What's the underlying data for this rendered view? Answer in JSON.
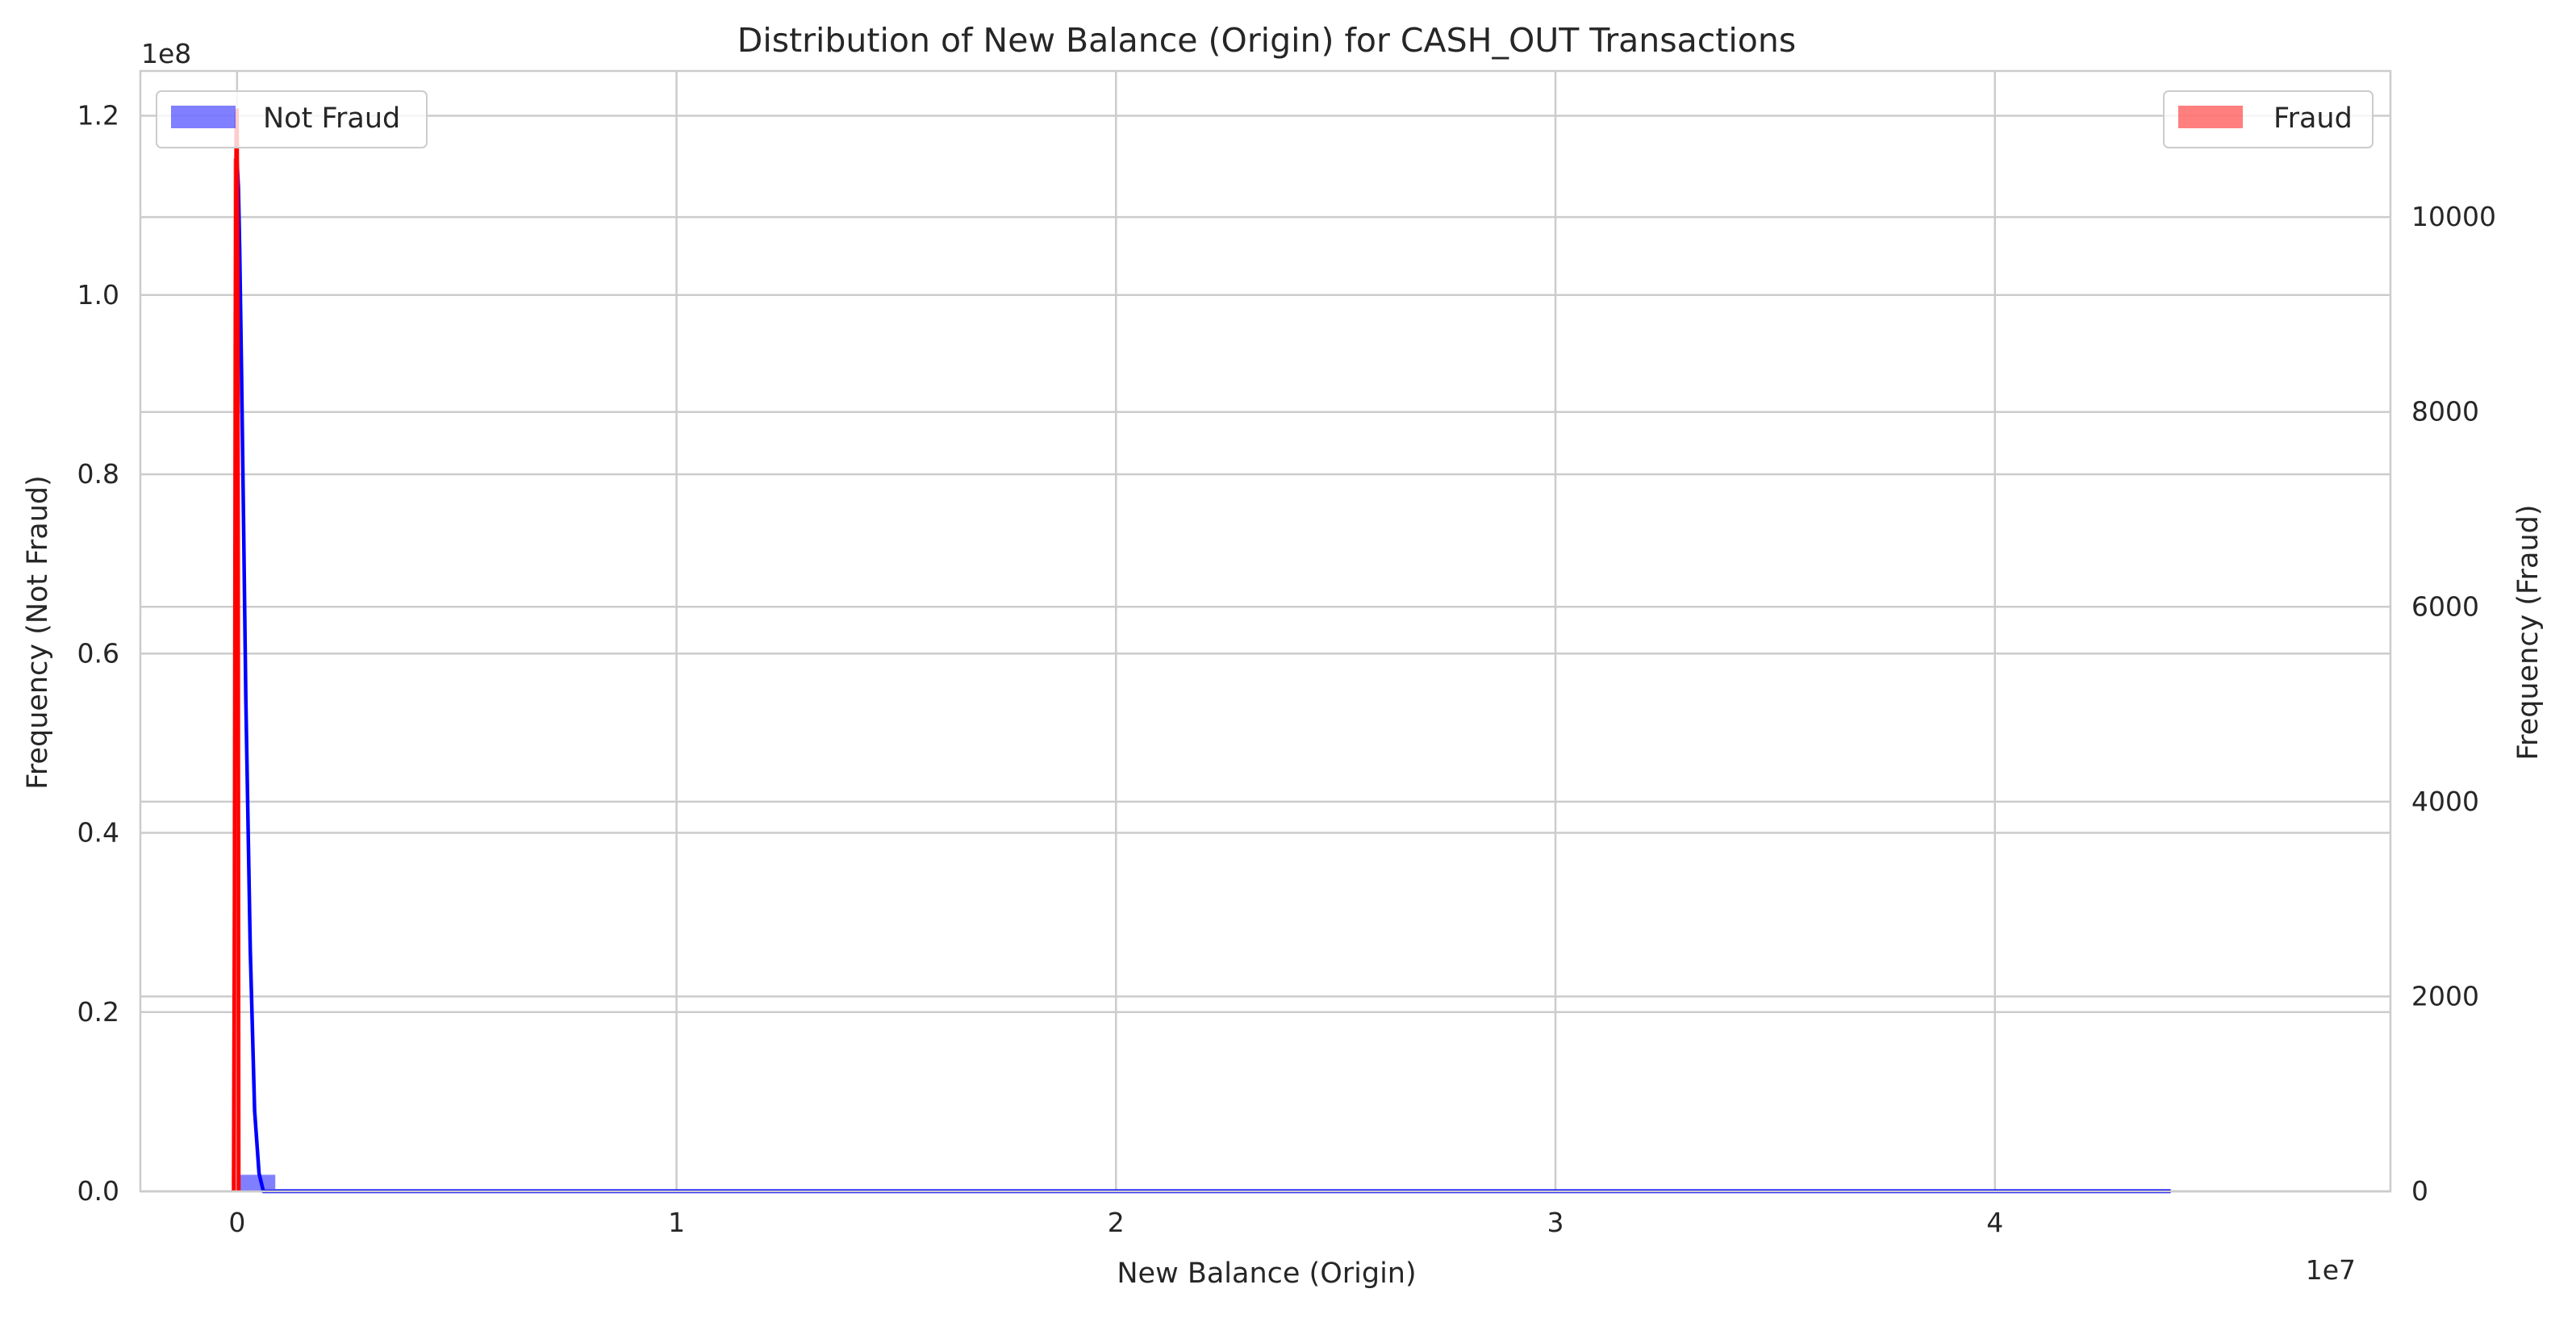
{
  "chart_data": {
    "type": "bar",
    "title": "Distribution of New Balance (Origin) for CASH_OUT Transactions",
    "xlabel": "New Balance (Origin)",
    "ylabel_left": "Frequency (Not Fraud)",
    "ylabel_right": "Frequency (Fraud)",
    "x_scale_text": "1e7",
    "y_left_scale_text": "1e8",
    "x_range": [
      -0.22,
      4.9
    ],
    "x_ticks": [
      0,
      1,
      2,
      3,
      4
    ],
    "y_left_range": [
      0,
      1.25
    ],
    "y_left_ticks": [
      "0.0",
      "0.2",
      "0.4",
      "0.6",
      "0.8",
      "1.0",
      "1.2"
    ],
    "y_right_range": [
      0,
      11500
    ],
    "y_right_ticks": [
      "0",
      "2000",
      "4000",
      "6000",
      "8000",
      "10000"
    ],
    "grid": true,
    "colors": {
      "not_fraud": "#0000ff",
      "fraud": "#ff0000",
      "grid": "#cccccc",
      "spine": "#cccccc",
      "text": "#262626"
    },
    "series": [
      {
        "name": "Not Fraud",
        "axis": "left",
        "bar_alpha": 0.5,
        "bins": [
          {
            "x0": 0.0,
            "x1": 0.087,
            "value": 0.0185
          },
          {
            "x0": 0.087,
            "x1": 4.4,
            "value": 0.002
          }
        ],
        "kde": {
          "x": [
            0.0,
            0.003,
            0.006,
            0.01,
            0.015,
            0.02,
            0.03,
            0.04,
            0.05,
            0.06,
            0.08,
            0.1,
            0.2,
            0.5,
            1.0,
            2.0,
            3.0,
            4.0,
            4.4
          ],
          "y": [
            1.15,
            1.12,
            1.05,
            0.92,
            0.74,
            0.55,
            0.27,
            0.09,
            0.02,
            0.0,
            0.0,
            0.0,
            0.0,
            0.0,
            0.0,
            0.0,
            0.0,
            0.0,
            0.0
          ]
        }
      },
      {
        "name": "Fraud",
        "axis": "right",
        "bar_alpha": 0.5,
        "bins": [
          {
            "x0": -0.008,
            "x1": 0.002,
            "value": 10600
          }
        ],
        "kde": {
          "x": [
            -0.008,
            -0.006,
            -0.004,
            -0.002,
            0.0,
            0.002,
            0.004
          ],
          "y": [
            0,
            3000,
            9000,
            11050,
            11100,
            9000,
            0
          ]
        }
      }
    ],
    "legends": [
      {
        "label": "Not Fraud",
        "color": "#0000ff",
        "position": "upper-left"
      },
      {
        "label": "Fraud",
        "color": "#ff0000",
        "position": "upper-right"
      }
    ]
  }
}
